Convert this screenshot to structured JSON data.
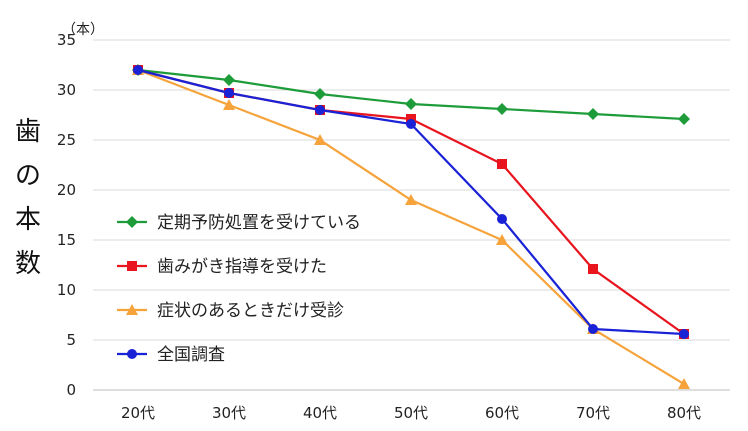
{
  "chart_data": {
    "type": "line",
    "title": "",
    "ylabel": "歯の本数",
    "yunit": "（本）",
    "xlabel": "",
    "categories": [
      "20代",
      "30代",
      "40代",
      "50代",
      "60代",
      "70代",
      "80代"
    ],
    "ylim": [
      0,
      35
    ],
    "yticks": [
      0,
      5,
      10,
      15,
      20,
      25,
      30,
      35
    ],
    "grid": true,
    "legend_position": "left-center",
    "series": [
      {
        "name": "定期予防処置を受けている",
        "color": "#1e9c3a",
        "marker": "diamond",
        "values": [
          32,
          31,
          29.6,
          28.6,
          28.1,
          27.6,
          27.1
        ]
      },
      {
        "name": "歯みがき指導を受けた",
        "color": "#e8141e",
        "marker": "square",
        "values": [
          32,
          29.7,
          28,
          27.1,
          22.6,
          12.1,
          5.6
        ]
      },
      {
        "name": "症状のあるときだけ受診",
        "color": "#f5a33a",
        "marker": "triangle",
        "values": [
          32,
          28.5,
          25,
          19,
          15,
          6.1,
          0.6
        ]
      },
      {
        "name": "全国調査",
        "color": "#1a22d6",
        "marker": "circle",
        "values": [
          32,
          29.7,
          28,
          26.6,
          17.1,
          6.1,
          5.6
        ]
      }
    ]
  }
}
